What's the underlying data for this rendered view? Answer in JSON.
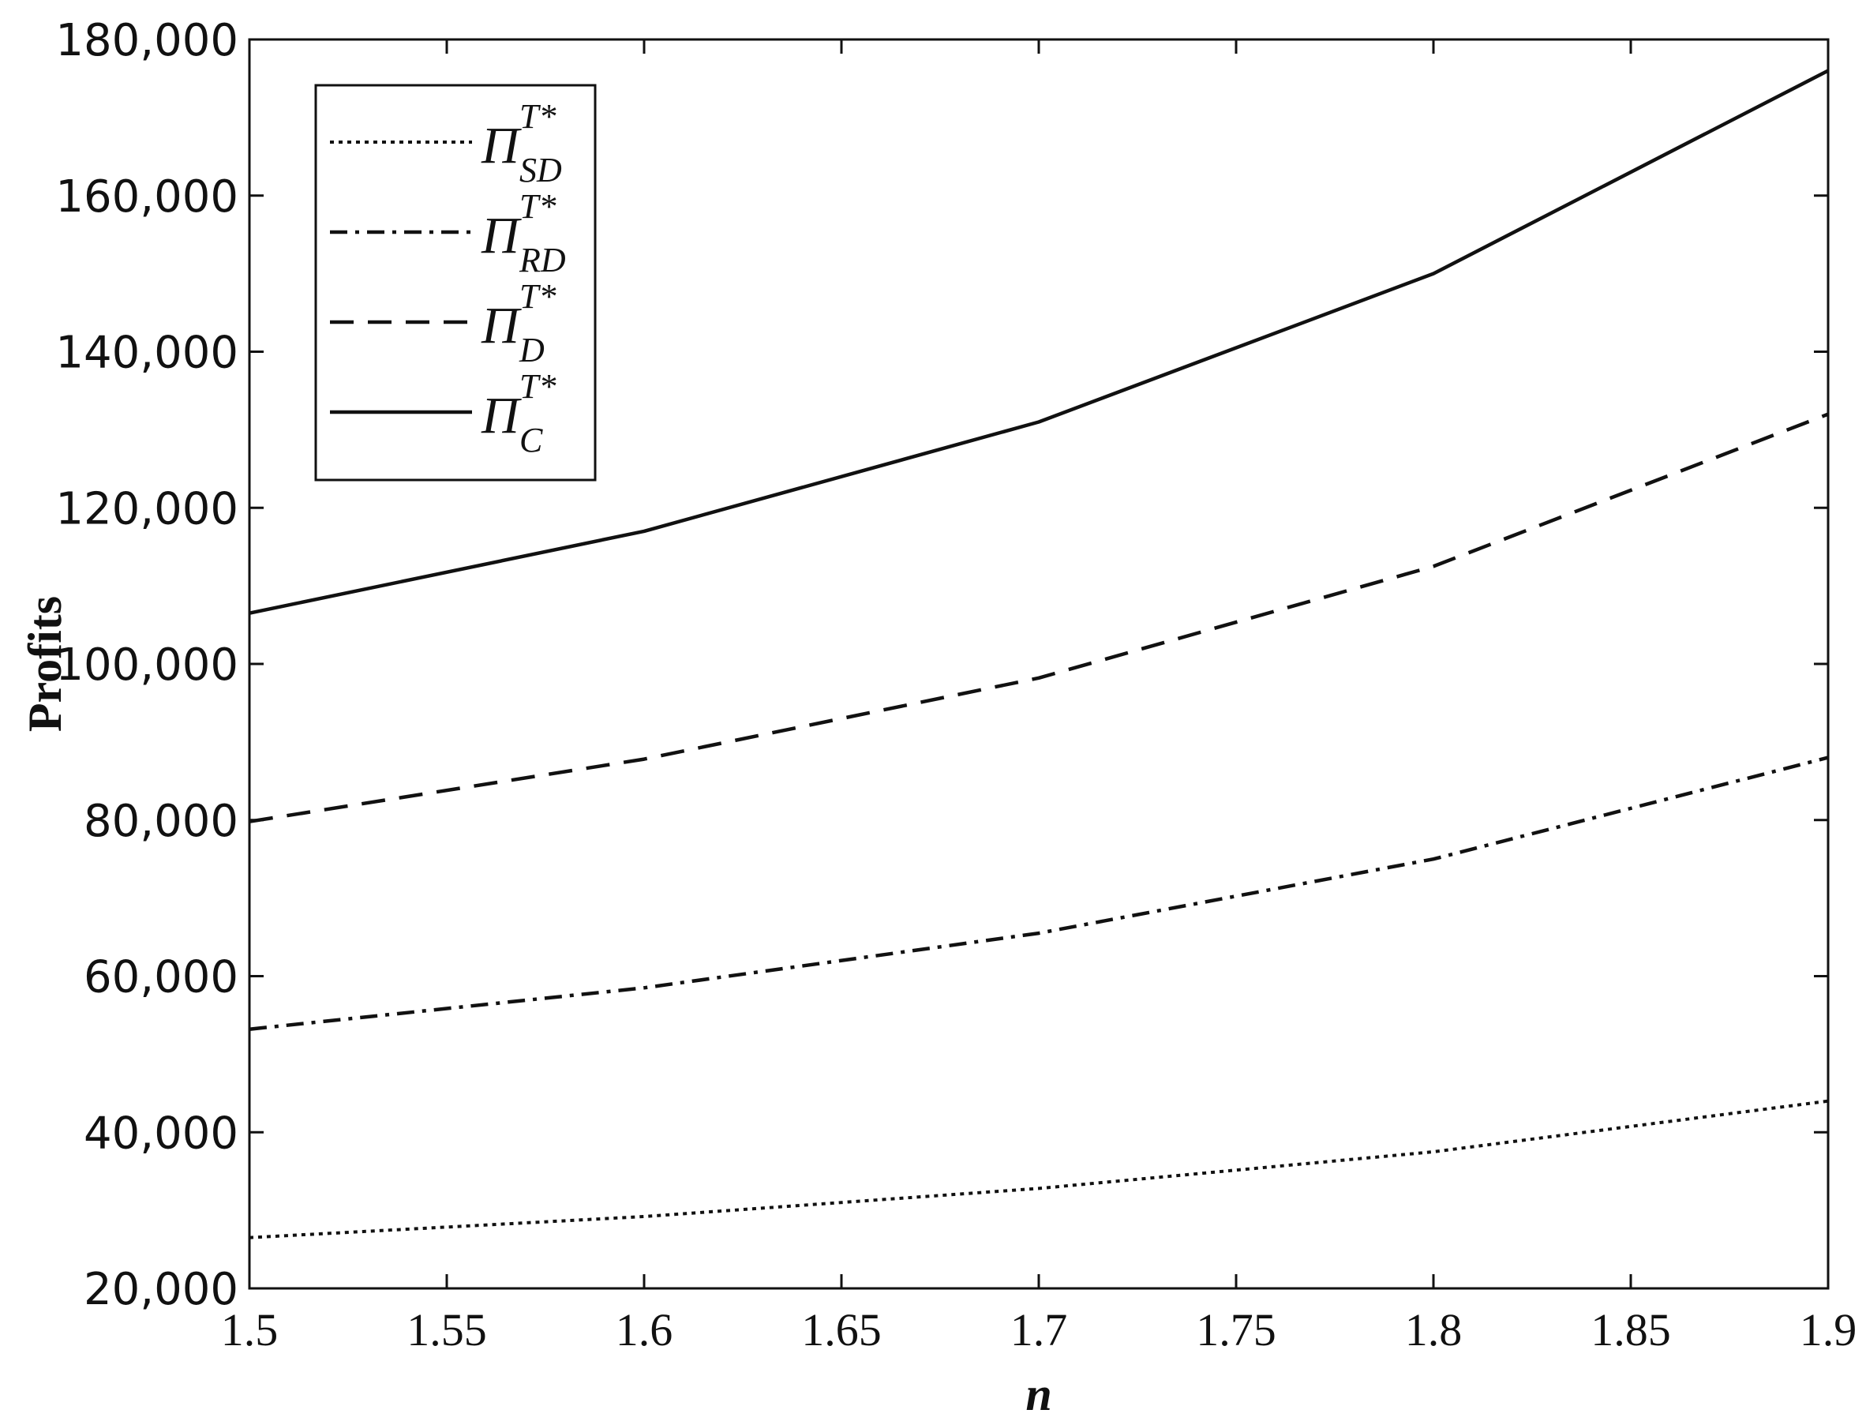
{
  "chart_data": {
    "type": "line",
    "title": "",
    "xlabel": "n",
    "ylabel": "Profits",
    "xlim": [
      1.5,
      1.9
    ],
    "ylim": [
      20000,
      180000
    ],
    "grid": false,
    "legend_position": "top-left",
    "x_ticks": [
      "1.5",
      "1.55",
      "1.6",
      "1.65",
      "1.7",
      "1.75",
      "1.8",
      "1.85",
      "1.9"
    ],
    "y_ticks": [
      "20,000",
      "40,000",
      "60,000",
      "80,000",
      "100,000",
      "120,000",
      "140,000",
      "160,000",
      "180,000"
    ],
    "x": [
      1.5,
      1.6,
      1.7,
      1.8,
      1.9
    ],
    "series": [
      {
        "name": "Π_SD^T*",
        "legend": {
          "symbol": "Π",
          "sub": "SD",
          "sup": "T*"
        },
        "style": "dotted",
        "values": [
          26500,
          29200,
          32800,
          37500,
          44000
        ]
      },
      {
        "name": "Π_RD^T*",
        "legend": {
          "symbol": "Π",
          "sub": "RD",
          "sup": "T*"
        },
        "style": "dashdot",
        "values": [
          53200,
          58500,
          65500,
          75000,
          88000
        ]
      },
      {
        "name": "Π_D^T*",
        "legend": {
          "symbol": "Π",
          "sub": "D",
          "sup": "T*"
        },
        "style": "dashed",
        "values": [
          79800,
          87800,
          98200,
          112500,
          132000
        ]
      },
      {
        "name": "Π_C^T*",
        "legend": {
          "symbol": "Π",
          "sub": "C",
          "sup": "T*"
        },
        "style": "solid",
        "values": [
          106500,
          117000,
          131000,
          150000,
          176000
        ]
      }
    ],
    "line_color": "#111111"
  }
}
